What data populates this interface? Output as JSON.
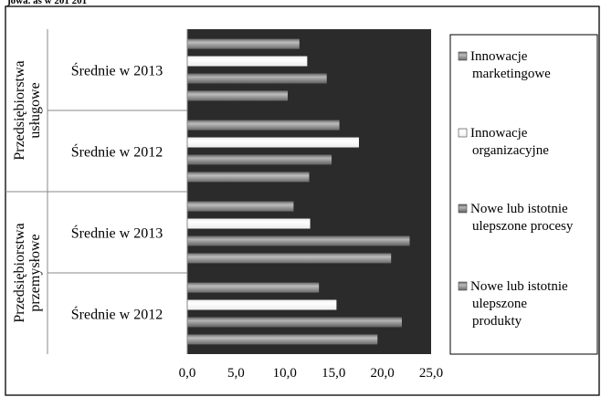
{
  "chart_data": {
    "type": "bar",
    "orientation": "horizontal",
    "title_fragment": "jowa.  as  w 201   201",
    "groups": [
      {
        "label": "Przedsiębiorstwa usługowe",
        "label_lines": [
          "Przedsiębiorstwa",
          "usługowe"
        ],
        "categories": [
          {
            "label": "Średnie w 2013",
            "values": [
              11.5,
              12.3,
              14.3,
              10.3
            ]
          },
          {
            "label": "Średnie w 2012",
            "values": [
              15.6,
              17.6,
              14.8,
              12.5
            ]
          }
        ]
      },
      {
        "label": "Przedsiębiorstwa przemysłowe",
        "label_lines": [
          "Przedsiębiorstwa",
          "przemysłowe"
        ],
        "categories": [
          {
            "label": "Średnie w 2013",
            "values": [
              10.9,
              12.6,
              22.8,
              20.9
            ]
          },
          {
            "label": "Średnie w 2012",
            "values": [
              13.5,
              15.3,
              22.0,
              19.5
            ]
          }
        ]
      }
    ],
    "series": [
      {
        "name": "Innowacje marketingowe",
        "legend_lines": [
          "Innowacje",
          "marketingowe"
        ]
      },
      {
        "name": "Innowacje organizacyjne",
        "legend_lines": [
          "Innowacje",
          "organizacyjne"
        ]
      },
      {
        "name": "Nowe lub istotnie ulepszone procesy",
        "legend_lines": [
          "Nowe lub istotnie",
          "ulepszone procesy"
        ]
      },
      {
        "name": "Nowe lub istotnie ulepszone produkty",
        "legend_lines": [
          "Nowe lub istotnie",
          "ulepszone",
          "produkty"
        ]
      }
    ],
    "xlim": [
      0,
      25
    ],
    "x_ticks": [
      "0,0",
      "5,0",
      "10,0",
      "15,0",
      "20,0",
      "25,0"
    ],
    "plot_background": "#2b2b2b",
    "colors": {
      "series_fill": [
        "#6a6a6a",
        "#ececec",
        "#606060",
        "#6a6a6a"
      ],
      "series_highlight": [
        "#bdbdbd",
        "#ffffff",
        "#b5b5b5",
        "#bdbdbd"
      ]
    },
    "grid": false,
    "legend_position": "right"
  }
}
